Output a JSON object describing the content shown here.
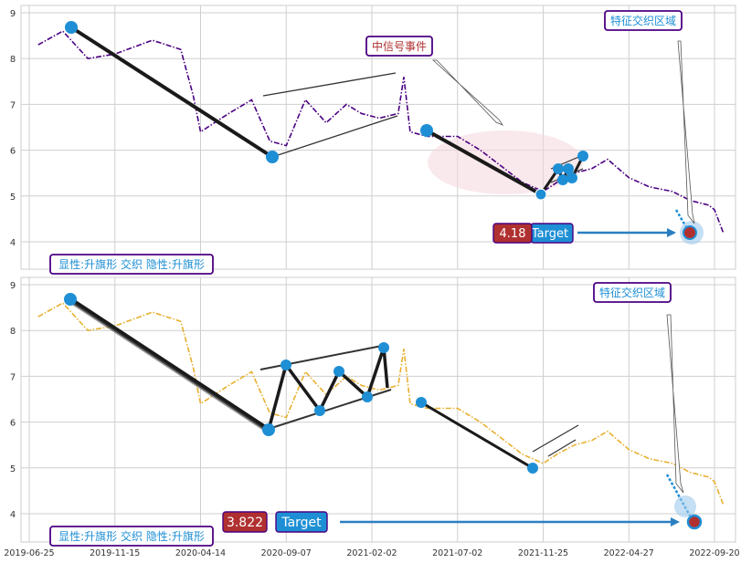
{
  "x_tick_labels": [
    "2019-06-25",
    "2019-11-15",
    "2020-04-14",
    "2020-09-07",
    "2021-02-02",
    "2021-07-02",
    "2021-11-25",
    "2022-04-27",
    "2022-09-20"
  ],
  "chart_data": [
    {
      "type": "line",
      "panel": "top",
      "style": "dash-dot",
      "color": "#4b0082",
      "ylim": [
        3.6,
        9.2
      ],
      "y_ticks": [
        4,
        5,
        6,
        7,
        8,
        9
      ],
      "grid": true,
      "series": [
        {
          "x": [
            "2019-07-10",
            "2019-08-20",
            "2019-10-01",
            "2019-11-15",
            "2020-01-20",
            "2020-03-10",
            "2020-04-01",
            "2020-04-14",
            "2020-06-01",
            "2020-07-10",
            "2020-08-10",
            "2020-09-07",
            "2020-10-10",
            "2020-11-15",
            "2020-12-20",
            "2021-01-15",
            "2021-02-15",
            "2021-03-20",
            "2021-03-30",
            "2021-04-10",
            "2021-05-10",
            "2021-06-10",
            "2021-07-02",
            "2021-08-10",
            "2021-09-20",
            "2021-10-20",
            "2021-11-25",
            "2021-12-20",
            "2022-01-20",
            "2022-02-20",
            "2022-03-20",
            "2022-04-27",
            "2022-06-01",
            "2022-07-10",
            "2022-08-10",
            "2022-09-10",
            "2022-09-20",
            "2022-10-05"
          ],
          "y": [
            8.3,
            8.6,
            8.0,
            8.1,
            8.4,
            8.2,
            7.2,
            6.4,
            6.8,
            7.1,
            6.2,
            6.1,
            7.1,
            6.6,
            7.0,
            6.8,
            6.7,
            6.8,
            7.6,
            6.4,
            6.3,
            6.3,
            6.3,
            6.0,
            5.6,
            5.3,
            5.1,
            5.3,
            5.5,
            5.6,
            5.8,
            5.4,
            5.2,
            5.1,
            4.9,
            4.8,
            4.7,
            4.2
          ]
        }
      ],
      "annotations": [
        {
          "text": "中信号事件"
        },
        {
          "text": "特征交织区域"
        },
        {
          "text": "显性:升旗形 交织 隐性:升旗形"
        },
        {
          "text": "4.18"
        },
        {
          "text": "Target"
        }
      ]
    },
    {
      "type": "line",
      "panel": "bottom",
      "style": "dash-dot",
      "color": "#e8b030",
      "ylim": [
        3.6,
        9.2
      ],
      "y_ticks": [
        4,
        5,
        6,
        7,
        8,
        9
      ],
      "grid": true,
      "series": [
        {
          "x": [
            "2019-07-10",
            "2019-08-20",
            "2019-10-01",
            "2019-11-15",
            "2020-01-20",
            "2020-03-10",
            "2020-04-01",
            "2020-04-14",
            "2020-06-01",
            "2020-07-10",
            "2020-08-10",
            "2020-09-07",
            "2020-10-10",
            "2020-11-15",
            "2020-12-20",
            "2021-01-15",
            "2021-02-15",
            "2021-03-20",
            "2021-03-30",
            "2021-04-10",
            "2021-05-10",
            "2021-06-10",
            "2021-07-02",
            "2021-08-10",
            "2021-09-20",
            "2021-10-20",
            "2021-11-25",
            "2021-12-20",
            "2022-01-20",
            "2022-02-20",
            "2022-03-20",
            "2022-04-27",
            "2022-06-01",
            "2022-07-10",
            "2022-08-10",
            "2022-09-10",
            "2022-09-20",
            "2022-10-05"
          ],
          "y": [
            8.3,
            8.6,
            8.0,
            8.1,
            8.4,
            8.2,
            7.2,
            6.4,
            6.8,
            7.1,
            6.2,
            6.1,
            7.1,
            6.6,
            7.0,
            6.8,
            6.7,
            6.8,
            7.6,
            6.4,
            6.3,
            6.3,
            6.3,
            6.0,
            5.6,
            5.3,
            5.1,
            5.3,
            5.5,
            5.6,
            5.8,
            5.4,
            5.2,
            5.1,
            4.9,
            4.8,
            4.7,
            4.2
          ]
        }
      ],
      "annotations": [
        {
          "text": "特征交织区域"
        },
        {
          "text": "显性:升旗形 交织 隐性:升旗形"
        },
        {
          "text": "3.822"
        },
        {
          "text": "Target"
        }
      ]
    }
  ]
}
